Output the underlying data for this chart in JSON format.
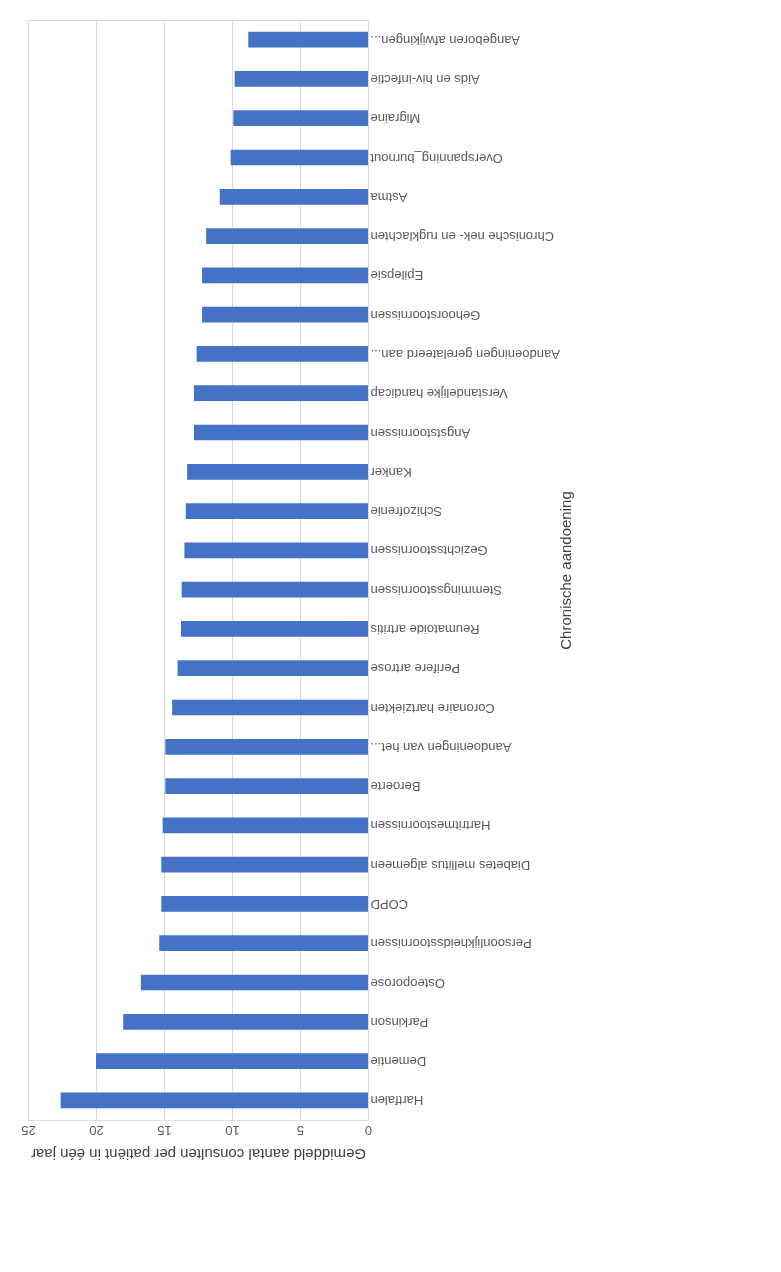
{
  "chart_data": {
    "type": "bar",
    "orientation": "horizontal",
    "xlabel": "Gemiddeld aantal consulten per patiënt in één jaar",
    "ylabel": "Chronische aandoening",
    "categories": [
      "Aangeboren afwijkingen...",
      "Aids en hiv-infectie",
      "Migraine",
      "Overspanning_burnout",
      "Astma",
      "Chronische nek- en rugklachten",
      "Epilepsie",
      "Gehoorstoornissen",
      "Aandoeningen gerelateerd aan...",
      "Verstandelijke handicap",
      "Angststoornissen",
      "Kanker",
      "Schizofrenie",
      "Gezichtsstoornissen",
      "Stemmingsstoornissen",
      "Reumatoide artritis",
      "Perifere artrose",
      "Coronaire hartziekten",
      "Aandoeningen van het...",
      "Beroerte",
      "Hartritmestoornissen",
      "Diabetes mellitus algemeen",
      "COPD",
      "Persoonlijkheidsstoornissen",
      "Osteoporose",
      "Parkinson",
      "Dementie",
      "Hartfalen"
    ],
    "values": [
      8.8,
      9.8,
      9.9,
      10.1,
      10.9,
      11.9,
      12.2,
      12.2,
      12.6,
      12.8,
      12.8,
      13.3,
      13.4,
      13.5,
      13.7,
      13.75,
      14.0,
      14.4,
      14.9,
      14.9,
      15.1,
      15.2,
      15.2,
      15.35,
      16.7,
      18.0,
      20.0,
      22.6
    ],
    "color": "#4472c4",
    "xlim": [
      25,
      0
    ],
    "xticks": [
      0,
      5,
      10,
      15,
      20,
      25
    ],
    "grid": "x"
  }
}
